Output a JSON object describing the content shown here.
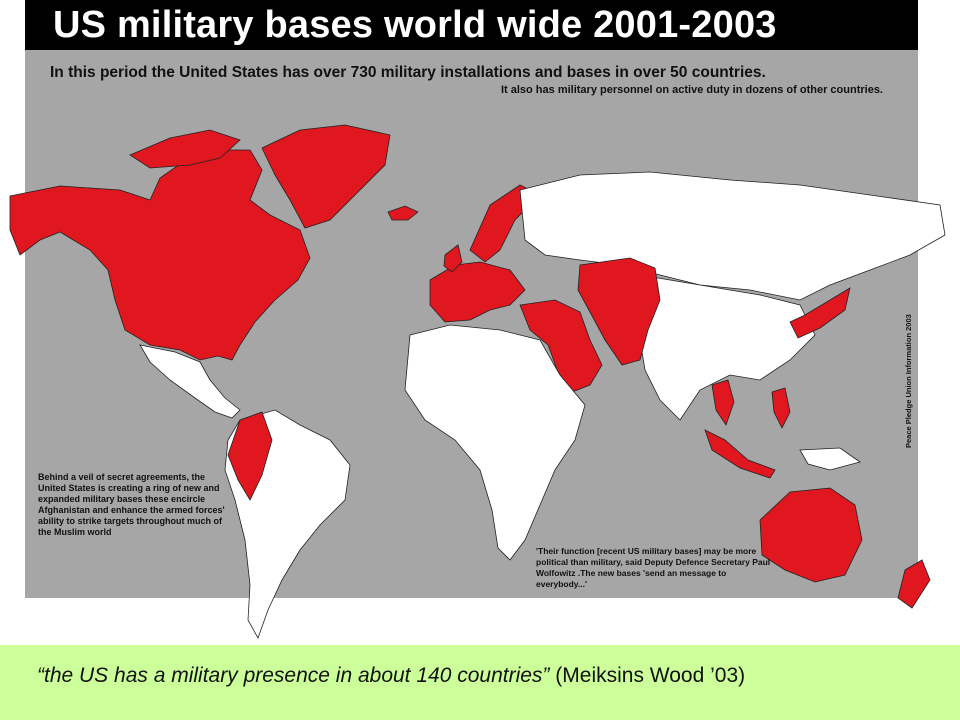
{
  "map": {
    "title": "US military bases world wide 2001-2003",
    "subtitle_line1": "In this period the United States has over 730 military installations and bases in over 50 countries.",
    "subtitle_line2": "It also has military personnel on active duty in dozens of other countries.",
    "note_left": "Behind a veil of secret agreements, the United States is creating a ring of new and expanded military bases these encircle Afghanistan and enhance the armed forces' ability to strike targets throughout much of the Muslim world",
    "note_right": "'Their function [recent US military bases] may be more political than military, said Deputy Defence Secretary Paul Wolfowitz .The new bases 'send an message to everybody...'",
    "credit": "Peace Pledge Union Information 2003",
    "colors": {
      "background": "#a6a6a6",
      "base_country": "#e0171f",
      "other_country": "#ffffff",
      "title_bar": "#000000"
    }
  },
  "footer": {
    "quote": "“the US has a military presence in about 140 countries”",
    "citation": "(Meiksins Wood ’03)",
    "background": "#ccff99"
  }
}
